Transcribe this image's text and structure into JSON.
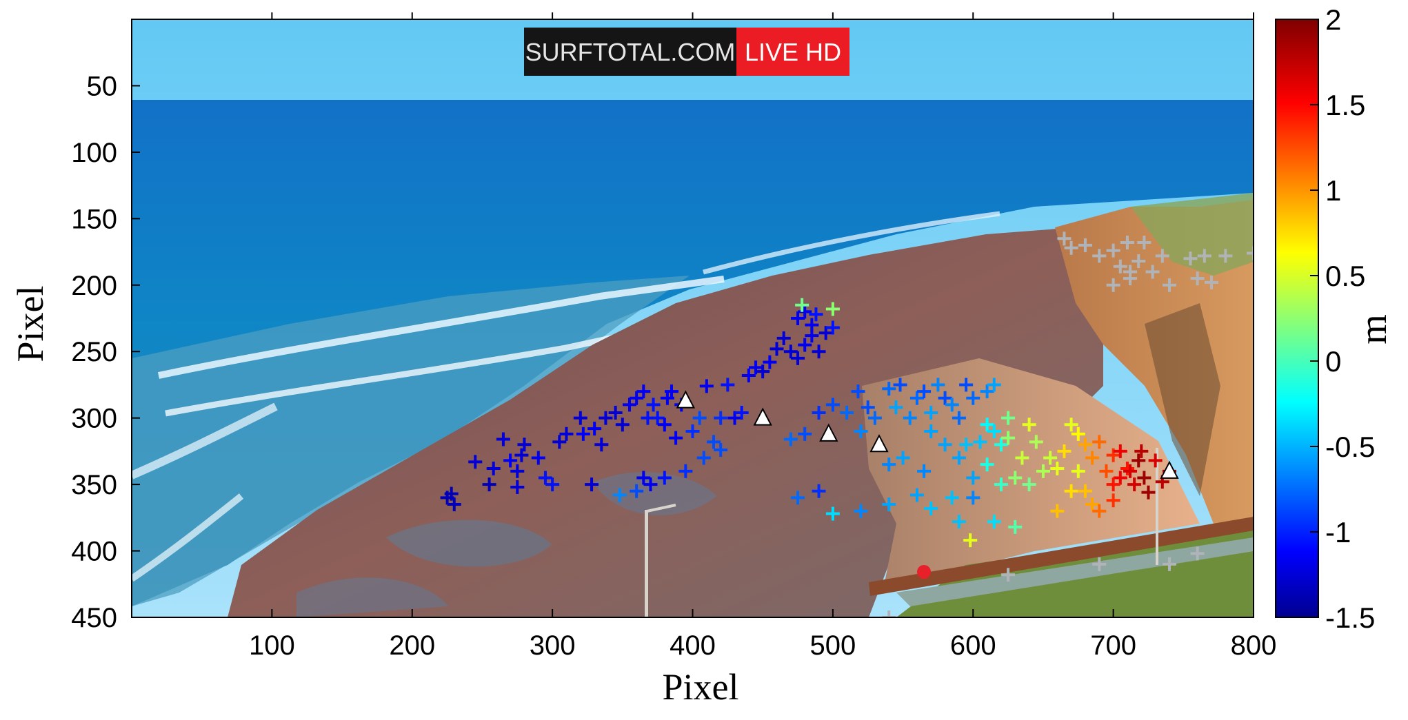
{
  "chart_data": {
    "type": "scatter",
    "title": "",
    "xlabel": "Pixel",
    "ylabel": "Pixel",
    "xlim": [
      0,
      800
    ],
    "ylim": [
      450,
      0
    ],
    "y_axis_inverted": true,
    "xticks": [
      "100",
      "200",
      "300",
      "400",
      "500",
      "600",
      "700",
      "800"
    ],
    "yticks": [
      "50",
      "100",
      "150",
      "200",
      "250",
      "300",
      "350",
      "400",
      "450"
    ],
    "background": "coastal webcam image (sea, surf zone, rocky reef, beach, cliffs)",
    "overlay_badge": {
      "left": "SURFTOTAL.COM",
      "right": "LIVE HD"
    },
    "colorbar": {
      "label": "m",
      "min": -1.5,
      "max": 2,
      "ticks": [
        "2",
        "1.5",
        "1",
        "0.5",
        "0",
        "-0.5",
        "-1",
        "-1.5"
      ],
      "colormap": "jet"
    },
    "marker": "+",
    "no_data_color": "#b0b4b8",
    "series": [
      {
        "marker": "+",
        "points": [
          [
            225,
            360,
            -1.3
          ],
          [
            230,
            365,
            -1.3
          ],
          [
            228,
            357,
            -1.3
          ],
          [
            245,
            333,
            -1.2
          ],
          [
            255,
            350,
            -1.3
          ],
          [
            258,
            338,
            -1.2
          ],
          [
            265,
            316,
            -1.2
          ],
          [
            270,
            332,
            -1.1
          ],
          [
            275,
            340,
            -1.2
          ],
          [
            278,
            328,
            -1.2
          ],
          [
            280,
            320,
            -1.2
          ],
          [
            275,
            352,
            -1.2
          ],
          [
            290,
            330,
            -1.1
          ],
          [
            295,
            345,
            -1.0
          ],
          [
            300,
            350,
            -1.0
          ],
          [
            305,
            318,
            -1.2
          ],
          [
            310,
            312,
            -1.2
          ],
          [
            320,
            300,
            -1.2
          ],
          [
            322,
            312,
            -1.1
          ],
          [
            328,
            350,
            -1.2
          ],
          [
            330,
            308,
            -1.1
          ],
          [
            335,
            320,
            -1.2
          ],
          [
            338,
            300,
            -1.2
          ],
          [
            345,
            296,
            -1.2
          ],
          [
            350,
            305,
            -1.2
          ],
          [
            355,
            290,
            -1.1
          ],
          [
            360,
            285,
            -1.1
          ],
          [
            365,
            280,
            -1.1
          ],
          [
            368,
            300,
            -1.0
          ],
          [
            372,
            290,
            -1.0
          ],
          [
            375,
            300,
            -1.0
          ],
          [
            380,
            305,
            -1.1
          ],
          [
            382,
            285,
            -1.1
          ],
          [
            385,
            280,
            -1.1
          ],
          [
            388,
            315,
            -1.1
          ],
          [
            392,
            290,
            -1.1
          ],
          [
            395,
            340,
            -0.9
          ],
          [
            400,
            310,
            -0.9
          ],
          [
            405,
            300,
            -0.8
          ],
          [
            408,
            330,
            -0.8
          ],
          [
            410,
            276,
            -1.1
          ],
          [
            415,
            318,
            -0.8
          ],
          [
            420,
            324,
            -0.8
          ],
          [
            420,
            300,
            -0.9
          ],
          [
            425,
            275,
            -1.0
          ],
          [
            430,
            300,
            -1.1
          ],
          [
            435,
            296,
            -1.0
          ],
          [
            440,
            268,
            -1.1
          ],
          [
            445,
            262,
            -1.1
          ],
          [
            450,
            265,
            -1.2
          ],
          [
            455,
            258,
            -1.1
          ],
          [
            460,
            248,
            -1.2
          ],
          [
            465,
            240,
            -1.2
          ],
          [
            470,
            250,
            -1.2
          ],
          [
            475,
            255,
            -1.2
          ],
          [
            480,
            245,
            -1.1
          ],
          [
            485,
            238,
            -1.1
          ],
          [
            490,
            250,
            -1.2
          ],
          [
            495,
            236,
            -1.2
          ],
          [
            500,
            232,
            -1.0
          ],
          [
            475,
            225,
            -1.1
          ],
          [
            480,
            220,
            -1.1
          ],
          [
            485,
            230,
            -1.1
          ],
          [
            478,
            215,
            0.2
          ],
          [
            500,
            218,
            0.3
          ],
          [
            488,
            222,
            -1.0
          ],
          [
            370,
            350,
            -1.1
          ],
          [
            365,
            345,
            -1.1
          ],
          [
            380,
            345,
            -1.0
          ],
          [
            348,
            358,
            -0.6
          ],
          [
            360,
            355,
            -0.8
          ],
          [
            470,
            316,
            -0.7
          ],
          [
            480,
            312,
            -0.8
          ],
          [
            490,
            296,
            -0.9
          ],
          [
            500,
            290,
            -0.8
          ],
          [
            510,
            296,
            -0.7
          ],
          [
            518,
            280,
            -0.8
          ],
          [
            520,
            310,
            -0.6
          ],
          [
            525,
            292,
            -0.8
          ],
          [
            530,
            300,
            -0.7
          ],
          [
            540,
            278,
            -0.7
          ],
          [
            545,
            292,
            -0.5
          ],
          [
            548,
            275,
            -0.8
          ],
          [
            555,
            300,
            -0.6
          ],
          [
            560,
            285,
            -0.7
          ],
          [
            565,
            280,
            -0.8
          ],
          [
            570,
            296,
            -0.5
          ],
          [
            575,
            275,
            -0.6
          ],
          [
            580,
            285,
            -0.8
          ],
          [
            585,
            290,
            -0.6
          ],
          [
            590,
            300,
            -0.7
          ],
          [
            595,
            275,
            -0.8
          ],
          [
            600,
            285,
            -0.7
          ],
          [
            610,
            280,
            -0.6
          ],
          [
            615,
            275,
            -0.5
          ],
          [
            540,
            335,
            -0.6
          ],
          [
            550,
            330,
            -0.5
          ],
          [
            565,
            340,
            -0.6
          ],
          [
            570,
            310,
            -0.5
          ],
          [
            580,
            320,
            -0.5
          ],
          [
            590,
            330,
            -0.5
          ],
          [
            595,
            320,
            -0.4
          ],
          [
            600,
            345,
            -0.5
          ],
          [
            605,
            318,
            -0.4
          ],
          [
            610,
            305,
            -0.2
          ],
          [
            615,
            310,
            -0.3
          ],
          [
            620,
            320,
            -0.1
          ],
          [
            475,
            360,
            -0.7
          ],
          [
            490,
            355,
            -0.9
          ],
          [
            500,
            372,
            -0.3
          ],
          [
            520,
            370,
            -0.6
          ],
          [
            540,
            365,
            -0.5
          ],
          [
            560,
            358,
            -0.5
          ],
          [
            570,
            368,
            -0.4
          ],
          [
            585,
            360,
            -0.4
          ],
          [
            590,
            378,
            -0.4
          ],
          [
            600,
            360,
            -0.6
          ],
          [
            615,
            378,
            -0.3
          ],
          [
            630,
            382,
            0.1
          ],
          [
            598,
            392,
            0.6
          ],
          [
            625,
            300,
            0.2
          ],
          [
            640,
            305,
            0.6
          ],
          [
            645,
            318,
            0.4
          ],
          [
            650,
            340,
            0.4
          ],
          [
            655,
            330,
            0.5
          ],
          [
            660,
            338,
            0.6
          ],
          [
            665,
            325,
            0.8
          ],
          [
            670,
            305,
            0.6
          ],
          [
            675,
            312,
            0.7
          ],
          [
            680,
            320,
            1.0
          ],
          [
            685,
            330,
            1.1
          ],
          [
            690,
            318,
            1.2
          ],
          [
            695,
            340,
            1.3
          ],
          [
            700,
            328,
            1.4
          ],
          [
            705,
            345,
            1.6
          ],
          [
            710,
            338,
            1.5
          ],
          [
            715,
            350,
            1.7
          ],
          [
            720,
            325,
            1.8
          ],
          [
            725,
            356,
            1.9
          ],
          [
            730,
            332,
            1.7
          ],
          [
            735,
            348,
            1.8
          ],
          [
            740,
            340,
            1.9
          ],
          [
            670,
            355,
            0.8
          ],
          [
            675,
            340,
            0.6
          ],
          [
            680,
            355,
            0.9
          ],
          [
            685,
            365,
            1.0
          ],
          [
            690,
            370,
            1.2
          ],
          [
            700,
            362,
            1.4
          ],
          [
            630,
            345,
            0.3
          ],
          [
            635,
            330,
            0.5
          ],
          [
            620,
            350,
            0.0
          ],
          [
            640,
            350,
            0.2
          ],
          [
            625,
            315,
            0.3
          ],
          [
            610,
            335,
            -0.1
          ],
          [
            660,
            370,
            0.9
          ],
          [
            700,
            350,
            1.5
          ],
          [
            705,
            325,
            1.6
          ],
          [
            712,
            340,
            1.7
          ],
          [
            718,
            332,
            1.9
          ],
          [
            722,
            345,
            1.9
          ]
        ]
      },
      {
        "name": "",
        "color": "#b0b4b8",
        "points": [
          [
            665,
            165
          ],
          [
            670,
            172
          ],
          [
            680,
            170
          ],
          [
            690,
            178
          ],
          [
            700,
            174
          ],
          [
            705,
            186
          ],
          [
            710,
            168
          ],
          [
            712,
            195
          ],
          [
            718,
            182
          ],
          [
            722,
            168
          ],
          [
            728,
            190
          ],
          [
            735,
            178
          ],
          [
            740,
            200
          ],
          [
            755,
            180
          ],
          [
            760,
            195
          ],
          [
            765,
            178
          ],
          [
            770,
            198
          ],
          [
            780,
            178
          ],
          [
            800,
            176
          ],
          [
            700,
            200
          ],
          [
            690,
            410
          ],
          [
            740,
            410
          ],
          [
            760,
            402
          ],
          [
            625,
            418
          ],
          [
            540,
            450
          ],
          [
            712,
            190
          ]
        ]
      }
    ],
    "reference_points": {
      "marker": "triangle",
      "color": "#ffffff",
      "points": [
        [
          395,
          287
        ],
        [
          450,
          300
        ],
        [
          497,
          312
        ],
        [
          533,
          320
        ],
        [
          740,
          340
        ]
      ]
    }
  }
}
